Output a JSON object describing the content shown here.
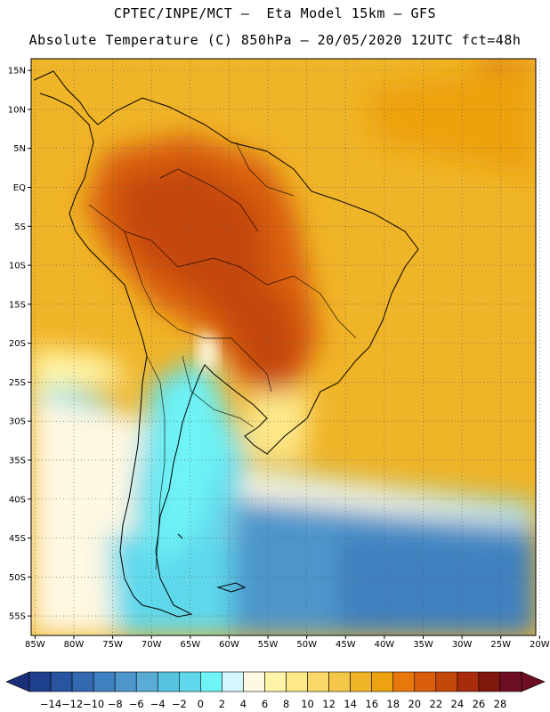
{
  "header": {
    "line1": "CPTEC/INPE/MCT –  Eta Model 15km – GFS",
    "line2": "Absolute Temperature (C) 850hPa – 20/05/2020 12UTC fct=48h"
  },
  "map": {
    "lat_labels": [
      "15N",
      "10N",
      "5N",
      "EQ",
      "5S",
      "10S",
      "15S",
      "20S",
      "25S",
      "30S",
      "35S",
      "40S",
      "45S",
      "50S",
      "55S"
    ],
    "lat_values": [
      15,
      10,
      5,
      0,
      -5,
      -10,
      -15,
      -20,
      -25,
      -30,
      -35,
      -40,
      -45,
      -50,
      -55
    ],
    "lon_labels": [
      "85W",
      "80W",
      "75W",
      "70W",
      "65W",
      "60W",
      "55W",
      "50W",
      "45W",
      "40W",
      "35W",
      "30W",
      "25W",
      "20W"
    ],
    "lon_values": [
      -85,
      -80,
      -75,
      -70,
      -65,
      -60,
      -55,
      -50,
      -45,
      -40,
      -35,
      -30,
      -25,
      -20
    ],
    "lon_range": [
      -85.5,
      -20.5
    ],
    "lat_range": [
      -57.5,
      16.5
    ],
    "grid": "dotted"
  },
  "colorbar": {
    "labels": [
      "-14",
      "-12",
      "-10",
      "-8",
      "-6",
      "-4",
      "-2",
      "0",
      "2",
      "4",
      "6",
      "8",
      "10",
      "12",
      "14",
      "16",
      "18",
      "20",
      "22",
      "24",
      "26",
      "28"
    ],
    "colors": [
      "#1e3f8c",
      "#2755a0",
      "#3369b0",
      "#3f80c0",
      "#4d96cc",
      "#5aabd6",
      "#56c3e0",
      "#5fd8ec",
      "#6ef3f6",
      "#d4f6fc",
      "#fff8e2",
      "#fff5a8",
      "#fde88a",
      "#f9d769",
      "#f4c74a",
      "#f0b428",
      "#eda210",
      "#e8780c",
      "#d95f0c",
      "#c4470b",
      "#a82c0c",
      "#80180e",
      "#6e0e24"
    ],
    "arrow_left_color": "#1a2f7a",
    "arrow_right_color": "#6e0e24"
  }
}
